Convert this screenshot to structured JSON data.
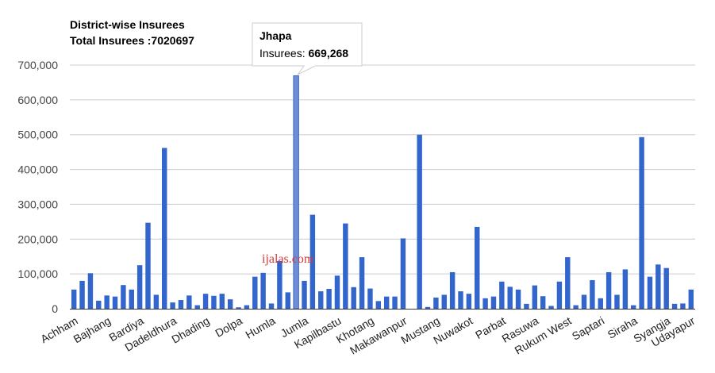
{
  "chart_data": {
    "type": "bar",
    "title": "District-wise Insurees",
    "subtitle": "Total Insurees :7020697",
    "xlabel": "",
    "ylabel": "",
    "ylim": [
      0,
      700000
    ],
    "y_ticks": [
      "700,000",
      "600,000",
      "500,000",
      "400,000",
      "300,000",
      "200,000",
      "100,000",
      "0"
    ],
    "y_tick_values": [
      700000,
      600000,
      500000,
      400000,
      300000,
      200000,
      100000,
      0
    ],
    "grid": true,
    "legend": "none",
    "bar_color": "#3366cc",
    "highlight_color": "#6f8ed6",
    "series_name": "Insurees",
    "values": [
      55000,
      80000,
      102000,
      23000,
      38000,
      35000,
      68000,
      55000,
      125000,
      247000,
      40000,
      462000,
      18000,
      25000,
      38000,
      10000,
      43000,
      37000,
      43000,
      27000,
      4000,
      10000,
      92000,
      103000,
      15000,
      137000,
      47000,
      669268,
      80000,
      270000,
      50000,
      57000,
      95000,
      245000,
      62000,
      148000,
      58000,
      22000,
      35000,
      35000,
      202000,
      0,
      500000,
      5000,
      32000,
      40000,
      105000,
      50000,
      43000,
      235000,
      30000,
      35000,
      78000,
      63000,
      55000,
      14000,
      67000,
      36000,
      8000,
      78000,
      148000,
      10000,
      40000,
      82000,
      30000,
      105000,
      40000,
      113000,
      10000,
      493000,
      92000,
      127000,
      117000,
      14000,
      15000,
      55000
    ],
    "x_labels": [
      {
        "label": "Achham",
        "index": 0
      },
      {
        "label": "Bajhang",
        "index": 4
      },
      {
        "label": "Bardiya",
        "index": 8
      },
      {
        "label": "Dadeldhura",
        "index": 12
      },
      {
        "label": "Dhading",
        "index": 16
      },
      {
        "label": "Dolpa",
        "index": 20
      },
      {
        "label": "Humla",
        "index": 24
      },
      {
        "label": "Jumla",
        "index": 28
      },
      {
        "label": "Kapilbastu",
        "index": 32
      },
      {
        "label": "Khotang",
        "index": 36
      },
      {
        "label": "Makawanpur",
        "index": 40
      },
      {
        "label": "Mustang",
        "index": 44
      },
      {
        "label": "Nuwakot",
        "index": 48
      },
      {
        "label": "Parbat",
        "index": 52
      },
      {
        "label": "Rasuwa",
        "index": 56
      },
      {
        "label": "Rukum West",
        "index": 60
      },
      {
        "label": "Saptari",
        "index": 64
      },
      {
        "label": "Siraha",
        "index": 68
      },
      {
        "label": "Syangja",
        "index": 72
      },
      {
        "label": "Udayapur",
        "index": 75
      }
    ],
    "tooltip": {
      "title": "Jhapa",
      "label": "Insurees: ",
      "value": "669,268",
      "index": 27
    }
  },
  "watermark": "ijalas.com"
}
